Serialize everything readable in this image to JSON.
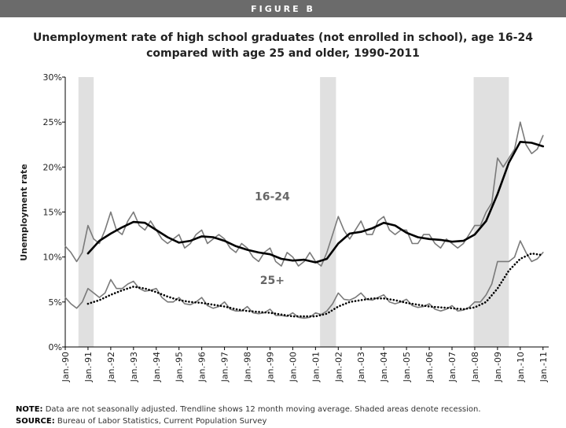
{
  "header": "FIGURE B",
  "chart_data": {
    "type": "line",
    "title_lines": [
      "Unemployment rate of high school graduates (not enrolled in school), age 16-24",
      "compared with age 25 and older, 1990-2011"
    ],
    "ylabel": "Unemployment rate",
    "xlim": [
      1990,
      2011.25
    ],
    "ylim": [
      0,
      30
    ],
    "yticks": [
      {
        "value": 0,
        "label": "0%"
      },
      {
        "value": 5,
        "label": "5%"
      },
      {
        "value": 10,
        "label": "10%"
      },
      {
        "value": 15,
        "label": "15%"
      },
      {
        "value": 20,
        "label": "20%"
      },
      {
        "value": 25,
        "label": "25%"
      },
      {
        "value": 30,
        "label": "30%"
      }
    ],
    "xticks": [
      {
        "value": 1990,
        "label": "Jan.-90"
      },
      {
        "value": 1991,
        "label": "Jan.-91"
      },
      {
        "value": 1992,
        "label": "Jan.-92"
      },
      {
        "value": 1993,
        "label": "Jan.-93"
      },
      {
        "value": 1994,
        "label": "Jan.-94"
      },
      {
        "value": 1995,
        "label": "Jan.-95"
      },
      {
        "value": 1996,
        "label": "Jan.-96"
      },
      {
        "value": 1997,
        "label": "Jan.-97"
      },
      {
        "value": 1998,
        "label": "Jan.-98"
      },
      {
        "value": 1999,
        "label": "Jan.-99"
      },
      {
        "value": 2000,
        "label": "Jan.-00"
      },
      {
        "value": 2001,
        "label": "Jan.-01"
      },
      {
        "value": 2002,
        "label": "Jan.-02"
      },
      {
        "value": 2003,
        "label": "Jan.-03"
      },
      {
        "value": 2004,
        "label": "Jan.-04"
      },
      {
        "value": 2005,
        "label": "Jan.-05"
      },
      {
        "value": 2006,
        "label": "Jan.-06"
      },
      {
        "value": 2007,
        "label": "Jan.-07"
      },
      {
        "value": 2008,
        "label": "Jan.-08"
      },
      {
        "value": 2009,
        "label": "Jan.-09"
      },
      {
        "value": 2010,
        "label": "Jan.-10"
      },
      {
        "value": 2011,
        "label": "Jan.-11"
      }
    ],
    "recessions": [
      [
        1990.58,
        1991.25
      ],
      [
        2001.2,
        2001.9
      ],
      [
        2007.95,
        2009.5
      ]
    ],
    "recession_color": "#e0e0e0",
    "series": [
      {
        "color": "#7a7a7a",
        "line_style": "solid",
        "width": 1.6,
        "x": [
          1990,
          1990.25,
          1990.5,
          1990.75,
          1991,
          1991.25,
          1991.5,
          1991.75,
          1992,
          1992.25,
          1992.5,
          1992.75,
          1993,
          1993.25,
          1993.5,
          1993.75,
          1994,
          1994.25,
          1994.5,
          1994.75,
          1995,
          1995.25,
          1995.5,
          1995.75,
          1996,
          1996.25,
          1996.5,
          1996.75,
          1997,
          1997.25,
          1997.5,
          1997.75,
          1998,
          1998.25,
          1998.5,
          1998.75,
          1999,
          1999.25,
          1999.5,
          1999.75,
          2000,
          2000.25,
          2000.5,
          2000.75,
          2001,
          2001.25,
          2001.5,
          2001.75,
          2002,
          2002.25,
          2002.5,
          2002.75,
          2003,
          2003.25,
          2003.5,
          2003.75,
          2004,
          2004.25,
          2004.5,
          2004.75,
          2005,
          2005.25,
          2005.5,
          2005.75,
          2006,
          2006.25,
          2006.5,
          2006.75,
          2007,
          2007.25,
          2007.5,
          2007.75,
          2008,
          2008.25,
          2008.5,
          2008.75,
          2009,
          2009.25,
          2009.5,
          2009.75,
          2010,
          2010.25,
          2010.5,
          2010.75,
          2011
        ],
        "values": [
          11.2,
          10.5,
          9.5,
          10.5,
          13.5,
          12.0,
          11.5,
          13.0,
          15.0,
          13.0,
          12.5,
          14.0,
          15.0,
          13.5,
          13.0,
          14.0,
          13.0,
          12.0,
          11.5,
          12.0,
          12.5,
          11.0,
          11.5,
          12.5,
          13.0,
          11.5,
          12.0,
          12.5,
          12.0,
          11.0,
          10.5,
          11.5,
          11.0,
          10.0,
          9.5,
          10.5,
          11.0,
          9.5,
          9.0,
          10.5,
          10.0,
          9.0,
          9.5,
          10.5,
          9.5,
          9.0,
          10.5,
          12.5,
          14.5,
          13.0,
          12.0,
          13.0,
          14.0,
          12.5,
          12.5,
          14.0,
          14.5,
          13.0,
          12.5,
          13.0,
          13.0,
          11.5,
          11.5,
          12.5,
          12.5,
          11.5,
          11.0,
          12.0,
          11.5,
          11.0,
          11.5,
          12.5,
          13.5,
          13.5,
          15.0,
          16.0,
          21.0,
          20.0,
          21.0,
          22.0,
          25.0,
          22.5,
          21.5,
          22.0,
          23.5
        ]
      },
      {
        "color": "#000000",
        "line_style": "solid",
        "width": 2.6,
        "x": [
          1991,
          1991.5,
          1992,
          1992.5,
          1993,
          1993.5,
          1994,
          1994.5,
          1995,
          1995.5,
          1996,
          1996.5,
          1997,
          1997.5,
          1998,
          1998.5,
          1999,
          1999.5,
          2000,
          2000.5,
          2001,
          2001.5,
          2002,
          2002.5,
          2003,
          2003.5,
          2004,
          2004.5,
          2005,
          2005.5,
          2006,
          2006.5,
          2007,
          2007.5,
          2008,
          2008.5,
          2009,
          2009.5,
          2010,
          2010.5,
          2011
        ],
        "values": [
          10.4,
          11.8,
          12.6,
          13.3,
          13.9,
          13.8,
          13.0,
          12.2,
          11.6,
          11.8,
          12.3,
          12.2,
          11.8,
          11.2,
          10.8,
          10.5,
          10.3,
          9.8,
          9.6,
          9.7,
          9.4,
          9.8,
          11.5,
          12.6,
          12.8,
          13.2,
          13.8,
          13.5,
          12.7,
          12.2,
          12.0,
          11.9,
          11.7,
          11.8,
          12.5,
          14.0,
          17.0,
          20.5,
          22.8,
          22.7,
          22.3
        ]
      },
      {
        "color": "#7a7a7a",
        "line_style": "solid",
        "width": 1.6,
        "x": [
          1990,
          1990.25,
          1990.5,
          1990.75,
          1991,
          1991.25,
          1991.5,
          1991.75,
          1992,
          1992.25,
          1992.5,
          1992.75,
          1993,
          1993.25,
          1993.5,
          1993.75,
          1994,
          1994.25,
          1994.5,
          1994.75,
          1995,
          1995.25,
          1995.5,
          1995.75,
          1996,
          1996.25,
          1996.5,
          1996.75,
          1997,
          1997.25,
          1997.5,
          1997.75,
          1998,
          1998.25,
          1998.5,
          1998.75,
          1999,
          1999.25,
          1999.5,
          1999.75,
          2000,
          2000.25,
          2000.5,
          2000.75,
          2001,
          2001.25,
          2001.5,
          2001.75,
          2002,
          2002.25,
          2002.5,
          2002.75,
          2003,
          2003.25,
          2003.5,
          2003.75,
          2004,
          2004.25,
          2004.5,
          2004.75,
          2005,
          2005.25,
          2005.5,
          2005.75,
          2006,
          2006.25,
          2006.5,
          2006.75,
          2007,
          2007.25,
          2007.5,
          2007.75,
          2008,
          2008.25,
          2008.5,
          2008.75,
          2009,
          2009.25,
          2009.5,
          2009.75,
          2010,
          2010.25,
          2010.5,
          2010.75,
          2011
        ],
        "values": [
          5.5,
          4.8,
          4.3,
          5.0,
          6.5,
          6.0,
          5.5,
          6.0,
          7.5,
          6.5,
          6.5,
          7.0,
          7.3,
          6.5,
          6.2,
          6.3,
          6.5,
          5.5,
          5.0,
          5.0,
          5.5,
          4.8,
          4.7,
          5.0,
          5.5,
          4.6,
          4.3,
          4.5,
          5.0,
          4.2,
          4.0,
          4.0,
          4.5,
          3.8,
          3.7,
          3.8,
          4.2,
          3.5,
          3.5,
          3.4,
          3.8,
          3.3,
          3.2,
          3.3,
          3.8,
          3.6,
          4.0,
          4.8,
          6.0,
          5.3,
          5.2,
          5.5,
          6.0,
          5.3,
          5.2,
          5.5,
          5.8,
          5.0,
          4.8,
          5.0,
          5.3,
          4.6,
          4.4,
          4.5,
          4.8,
          4.2,
          4.0,
          4.2,
          4.6,
          4.0,
          4.1,
          4.4,
          5.0,
          5.0,
          5.8,
          7.0,
          9.5,
          9.5,
          9.5,
          10.0,
          11.8,
          10.5,
          9.5,
          9.8,
          10.5
        ]
      },
      {
        "color": "#000000",
        "line_style": "dotted",
        "width": 2.6,
        "x": [
          1991,
          1991.5,
          1992,
          1992.5,
          1993,
          1993.5,
          1994,
          1994.5,
          1995,
          1995.5,
          1996,
          1996.5,
          1997,
          1997.5,
          1998,
          1998.5,
          1999,
          1999.5,
          2000,
          2000.5,
          2001,
          2001.5,
          2002,
          2002.5,
          2003,
          2003.5,
          2004,
          2004.5,
          2005,
          2005.5,
          2006,
          2006.5,
          2007,
          2007.5,
          2008,
          2008.5,
          2009,
          2009.5,
          2010,
          2010.5,
          2011
        ],
        "values": [
          4.8,
          5.2,
          5.8,
          6.3,
          6.7,
          6.5,
          6.1,
          5.6,
          5.2,
          5.0,
          4.9,
          4.7,
          4.5,
          4.2,
          4.0,
          3.9,
          3.8,
          3.6,
          3.4,
          3.4,
          3.4,
          3.7,
          4.5,
          5.0,
          5.2,
          5.4,
          5.4,
          5.2,
          4.9,
          4.7,
          4.5,
          4.4,
          4.3,
          4.2,
          4.4,
          5.0,
          6.5,
          8.5,
          9.8,
          10.4,
          10.2
        ]
      }
    ],
    "annotations": [
      {
        "text": "16-24",
        "x": 1999.1,
        "y": 16.3
      },
      {
        "text": "25+",
        "x": 1999.1,
        "y": 7.0
      }
    ]
  },
  "note_label": "NOTE:",
  "note": "Data are not seasonally adjusted. Trendline shows 12 month moving average. Shaded areas denote recession.",
  "source_label": "SOURCE:",
  "source": "Bureau of Labor Statistics, Current Population Survey"
}
